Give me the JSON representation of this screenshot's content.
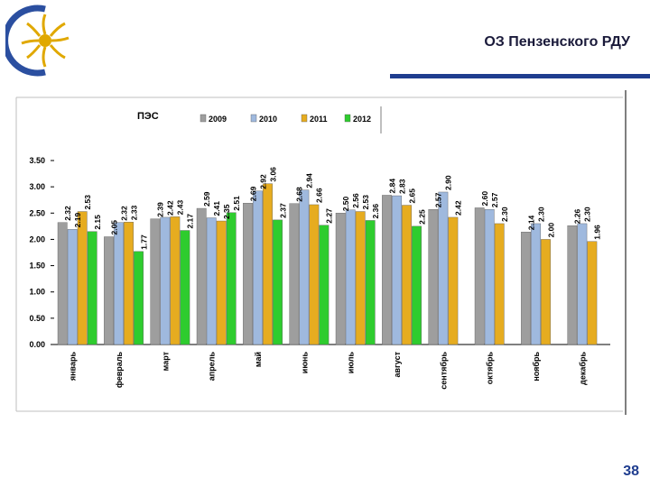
{
  "header": {
    "title": "ОЗ Пензенского РДУ"
  },
  "footer": {
    "page_number": "38"
  },
  "logo": {
    "icon": "company-logo-icon"
  },
  "colors": {
    "brand_blue": "#1f3d8f",
    "series_2009": "#9e9e9e",
    "series_2010": "#9fb9de",
    "series_2011": "#e6ac20",
    "series_2012": "#2ecc2e"
  },
  "chart_data": {
    "type": "bar",
    "title": "ПЭС",
    "categories": [
      "январь",
      "февраль",
      "март",
      "апрель",
      "май",
      "июнь",
      "июль",
      "август",
      "сентябрь",
      "октябрь",
      "ноябрь",
      "декабрь"
    ],
    "ylim": [
      0,
      3.5
    ],
    "yticks": [
      "0.00",
      "0.50",
      "1.00",
      "1.50",
      "2.00",
      "2.50",
      "3.00",
      "3.50"
    ],
    "legend_position": "top",
    "grid": false,
    "series": [
      {
        "name": "2009",
        "color": "#9e9e9e",
        "values": [
          2.32,
          2.05,
          2.39,
          2.59,
          2.69,
          2.68,
          2.5,
          2.84,
          2.57,
          2.6,
          2.14,
          2.26
        ]
      },
      {
        "name": "2010",
        "color": "#9fb9de",
        "values": [
          2.19,
          2.32,
          2.42,
          2.41,
          2.92,
          2.94,
          2.56,
          2.83,
          2.9,
          2.57,
          2.3,
          2.3
        ]
      },
      {
        "name": "2011",
        "color": "#e6ac20",
        "values": [
          2.53,
          2.33,
          2.43,
          2.35,
          3.06,
          2.66,
          2.53,
          2.65,
          2.42,
          2.3,
          2.0,
          1.96
        ]
      },
      {
        "name": "2012",
        "color": "#2ecc2e",
        "values": [
          2.15,
          1.77,
          2.17,
          2.51,
          2.37,
          2.27,
          2.36,
          2.25,
          null,
          null,
          null,
          null
        ]
      }
    ]
  }
}
